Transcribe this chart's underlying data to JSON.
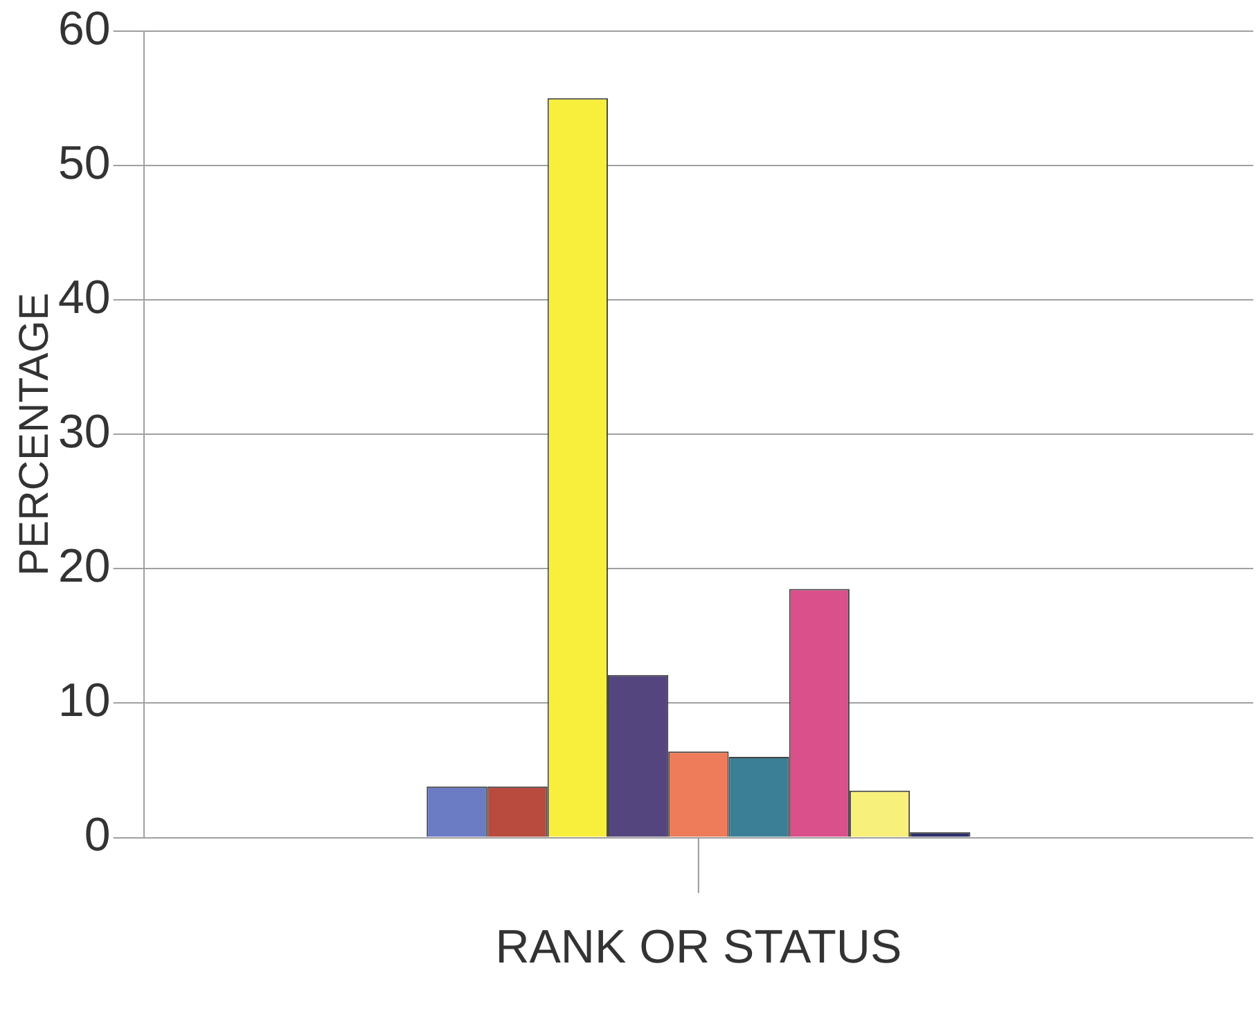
{
  "chart_data": {
    "type": "bar",
    "xlabel": "RANK OR STATUS",
    "ylabel": "PERCENTAGE",
    "categories": [
      null
    ],
    "series": [
      {
        "color": "#6b7cc4",
        "values": [
          3.8
        ]
      },
      {
        "color": "#b94a3e",
        "values": [
          3.8
        ]
      },
      {
        "color": "#f7ef3c",
        "values": [
          55
        ]
      },
      {
        "color": "#55457f",
        "values": [
          12.1
        ]
      },
      {
        "color": "#ee7b5a",
        "values": [
          6.4
        ]
      },
      {
        "color": "#3a7f95",
        "values": [
          6.0
        ]
      },
      {
        "color": "#d9508a",
        "values": [
          18.5
        ]
      },
      {
        "color": "#f7f07a",
        "values": [
          3.5
        ]
      },
      {
        "color": "#2e2f6b",
        "values": [
          0.4
        ]
      }
    ],
    "ylim": [
      0,
      60
    ],
    "yticks": [
      0,
      10,
      20,
      30,
      40,
      50,
      60
    ],
    "grid": "y",
    "legend": false
  }
}
